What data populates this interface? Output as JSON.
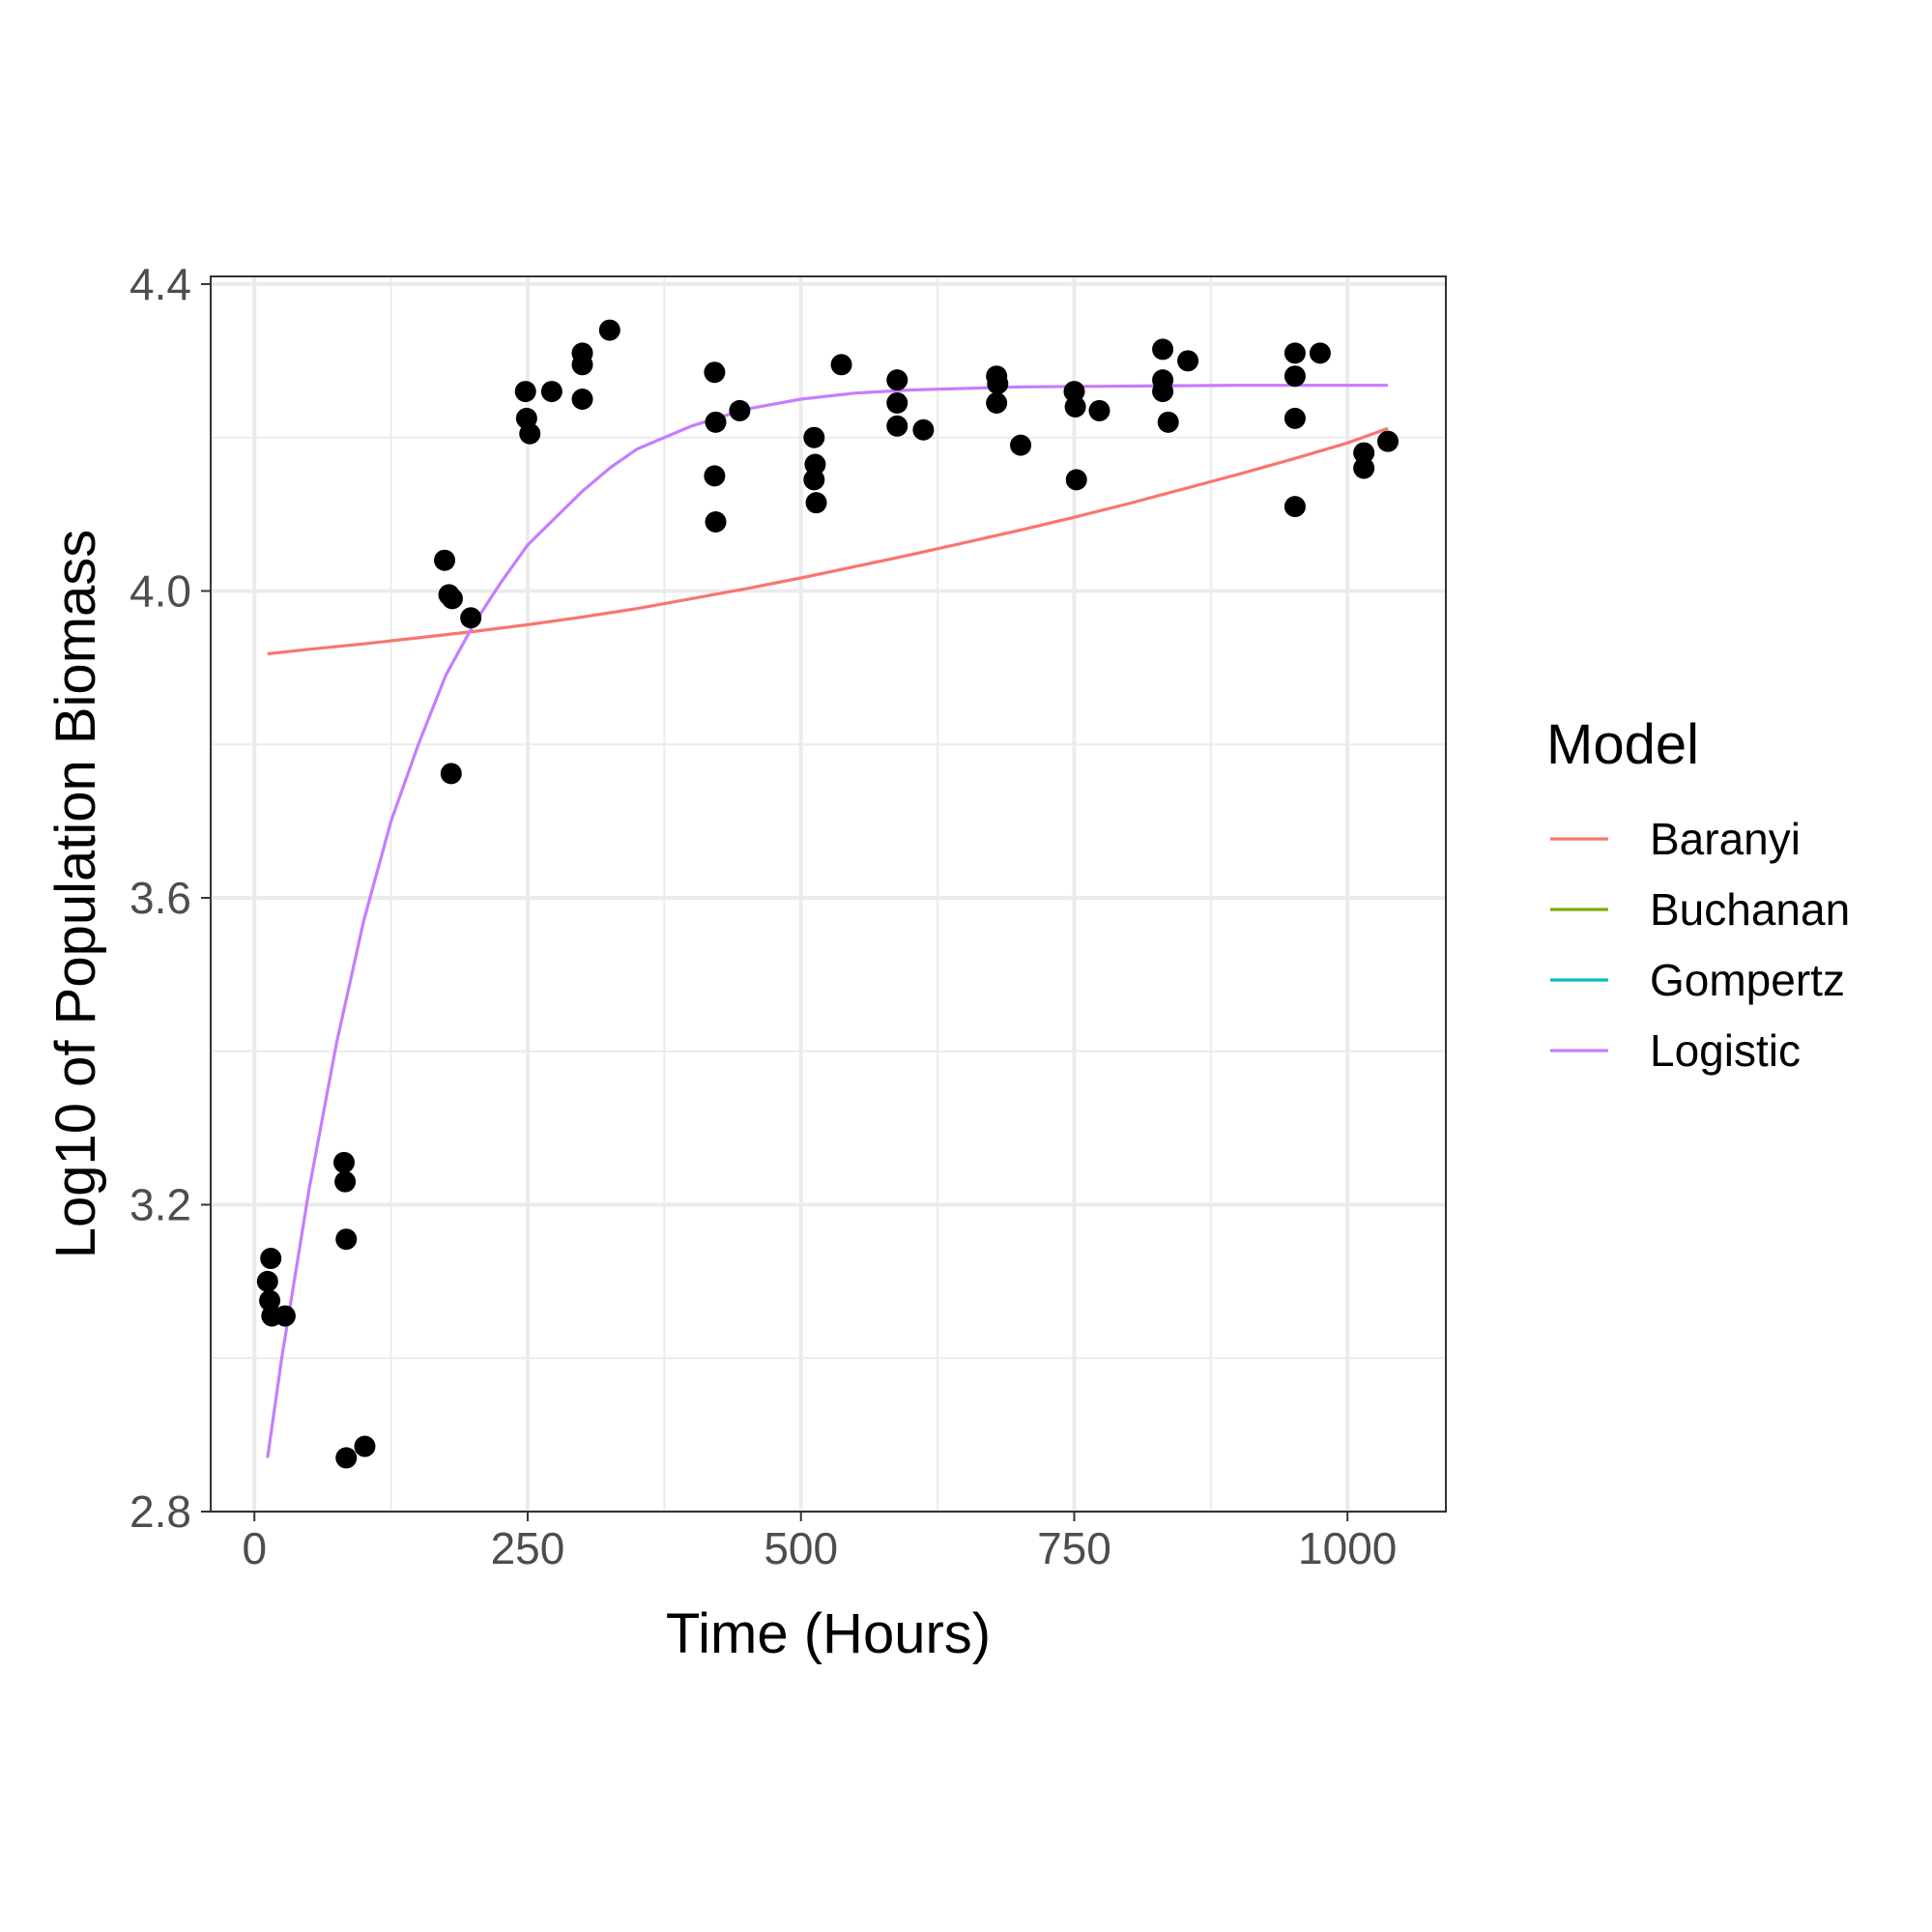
{
  "chart_data": {
    "type": "scatter",
    "xlabel": "Time (Hours)",
    "ylabel": "Log10 of Population Biomass",
    "xlim": [
      -40,
      1090
    ],
    "ylim": [
      2.8,
      4.41
    ],
    "x_ticks": [
      0,
      250,
      500,
      750,
      1000
    ],
    "y_ticks": [
      2.8,
      3.2,
      3.6,
      4.0,
      4.4
    ],
    "x_tick_labels": [
      "0",
      "250",
      "500",
      "750",
      "1000"
    ],
    "y_tick_labels": [
      "2.8",
      "3.2",
      "3.6",
      "4.0",
      "4.4"
    ],
    "grid": true,
    "legend": {
      "title": "Model",
      "position": "right",
      "entries": [
        {
          "name": "Baranyi",
          "color": "#F8766D"
        },
        {
          "name": "Buchanan",
          "color": "#7CAE00"
        },
        {
          "name": "Gompertz",
          "color": "#00BFC4"
        },
        {
          "name": "Logistic",
          "color": "#C77CFF"
        }
      ]
    },
    "points": [
      [
        12,
        3.1
      ],
      [
        14,
        3.075
      ],
      [
        15,
        3.13
      ],
      [
        16,
        3.055
      ],
      [
        28,
        3.055
      ],
      [
        82,
        3.255
      ],
      [
        83,
        3.23
      ],
      [
        84,
        3.155
      ],
      [
        84,
        2.87
      ],
      [
        101,
        2.885
      ],
      [
        174,
        4.04
      ],
      [
        178,
        3.995
      ],
      [
        181,
        3.99
      ],
      [
        180,
        3.762
      ],
      [
        198,
        3.965
      ],
      [
        248,
        4.26
      ],
      [
        249,
        4.225
      ],
      [
        252,
        4.205
      ],
      [
        272,
        4.26
      ],
      [
        300,
        4.31
      ],
      [
        300,
        4.295
      ],
      [
        300,
        4.25
      ],
      [
        325,
        4.34
      ],
      [
        421,
        4.285
      ],
      [
        422,
        4.22
      ],
      [
        421,
        4.15
      ],
      [
        422,
        4.09
      ],
      [
        444,
        4.235
      ],
      [
        512,
        4.2
      ],
      [
        513,
        4.165
      ],
      [
        512,
        4.145
      ],
      [
        514,
        4.115
      ],
      [
        537,
        4.295
      ],
      [
        588,
        4.275
      ],
      [
        588,
        4.245
      ],
      [
        588,
        4.215
      ],
      [
        612,
        4.21
      ],
      [
        679,
        4.28
      ],
      [
        680,
        4.27
      ],
      [
        679,
        4.245
      ],
      [
        701,
        4.19
      ],
      [
        750,
        4.26
      ],
      [
        751,
        4.24
      ],
      [
        752,
        4.145
      ],
      [
        773,
        4.235
      ],
      [
        831,
        4.315
      ],
      [
        831,
        4.275
      ],
      [
        831,
        4.26
      ],
      [
        836,
        4.22
      ],
      [
        854,
        4.3
      ],
      [
        952,
        4.31
      ],
      [
        952,
        4.28
      ],
      [
        952,
        4.225
      ],
      [
        952,
        4.11
      ],
      [
        975,
        4.31
      ],
      [
        1015,
        4.18
      ],
      [
        1015,
        4.16
      ],
      [
        1037,
        4.195
      ]
    ],
    "series": [
      {
        "name": "Baranyi",
        "color": "#F8766D",
        "x": [
          12,
          50,
          100,
          150,
          200,
          250,
          300,
          350,
          400,
          450,
          500,
          550,
          600,
          650,
          700,
          750,
          800,
          850,
          900,
          950,
          1000,
          1037
        ],
        "values": [
          3.918,
          3.924,
          3.931,
          3.939,
          3.947,
          3.956,
          3.966,
          3.977,
          3.99,
          4.003,
          4.017,
          4.032,
          4.047,
          4.063,
          4.079,
          4.096,
          4.114,
          4.133,
          4.152,
          4.172,
          4.193,
          4.212
        ]
      },
      {
        "name": "Logistic",
        "color": "#C77CFF",
        "x": [
          12,
          25,
          50,
          75,
          100,
          125,
          150,
          175,
          200,
          225,
          250,
          275,
          300,
          325,
          350,
          400,
          450,
          500,
          550,
          600,
          700,
          800,
          900,
          1000,
          1037
        ],
        "values": [
          2.87,
          3.0,
          3.22,
          3.41,
          3.57,
          3.7,
          3.8,
          3.89,
          3.955,
          4.01,
          4.06,
          4.095,
          4.13,
          4.16,
          4.185,
          4.215,
          4.237,
          4.25,
          4.258,
          4.262,
          4.266,
          4.267,
          4.268,
          4.268,
          4.268
        ]
      }
    ]
  }
}
